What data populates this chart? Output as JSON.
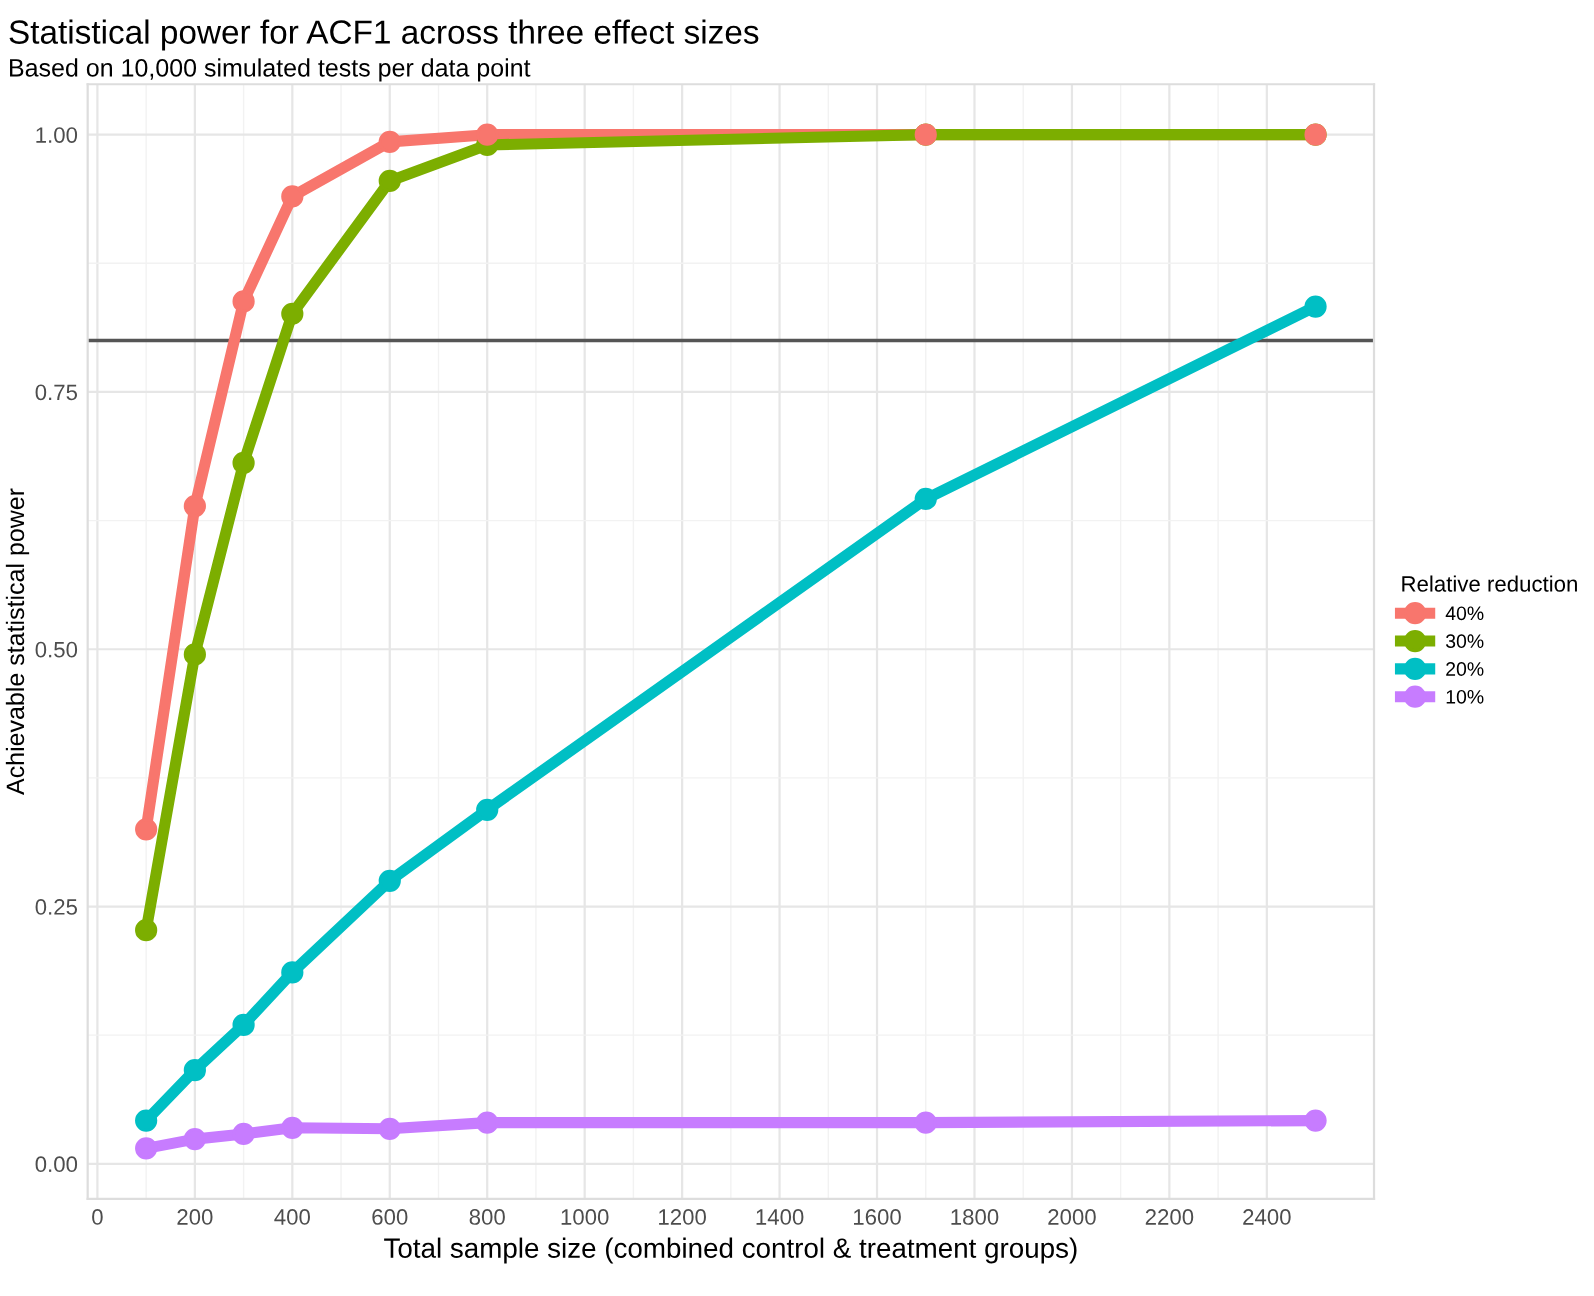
{
  "chart_data": {
    "type": "line",
    "title": "Statistical power for ACF1 across three effect sizes",
    "subtitle": "Based on 10,000 simulated tests per data point",
    "xlabel": "Total sample size (combined control & treatment groups)",
    "ylabel": "Achievable statistical power",
    "legend_title": "Relative reduction",
    "x": [
      100,
      200,
      300,
      400,
      600,
      800,
      1700,
      2500
    ],
    "series": [
      {
        "name": "40%",
        "color": "#f8766d",
        "values": [
          0.325,
          0.639,
          0.838,
          0.94,
          0.993,
          1.0,
          1.0,
          1.0
        ]
      },
      {
        "name": "30%",
        "color": "#7cae00",
        "values": [
          0.227,
          0.495,
          0.681,
          0.826,
          0.955,
          0.99,
          1.0,
          1.0
        ]
      },
      {
        "name": "20%",
        "color": "#00bfc4",
        "values": [
          0.042,
          0.091,
          0.135,
          0.186,
          0.275,
          0.344,
          0.646,
          0.833
        ]
      },
      {
        "name": "10%",
        "color": "#c77cff",
        "values": [
          0.015,
          0.024,
          0.029,
          0.035,
          0.034,
          0.04,
          0.04,
          0.042
        ]
      }
    ],
    "xlim": [
      -20,
      2620
    ],
    "xticks": [
      0,
      200,
      400,
      600,
      800,
      1000,
      1200,
      1400,
      1600,
      1800,
      2000,
      2200,
      2400
    ],
    "ylim": [
      -0.034,
      1.049
    ],
    "yticks": [
      {
        "value": 0,
        "label": "0.00"
      },
      {
        "value": 0.25,
        "label": "0.25"
      },
      {
        "value": 0.5,
        "label": "0.50"
      },
      {
        "value": 0.75,
        "label": "0.75"
      },
      {
        "value": 1.0,
        "label": "1.00"
      }
    ],
    "ref_lines": [
      {
        "axis": "y",
        "value": 0.8,
        "color": "#555555"
      }
    ],
    "grid": true,
    "legend": "right",
    "marker": "circle",
    "line_style": "solid"
  }
}
